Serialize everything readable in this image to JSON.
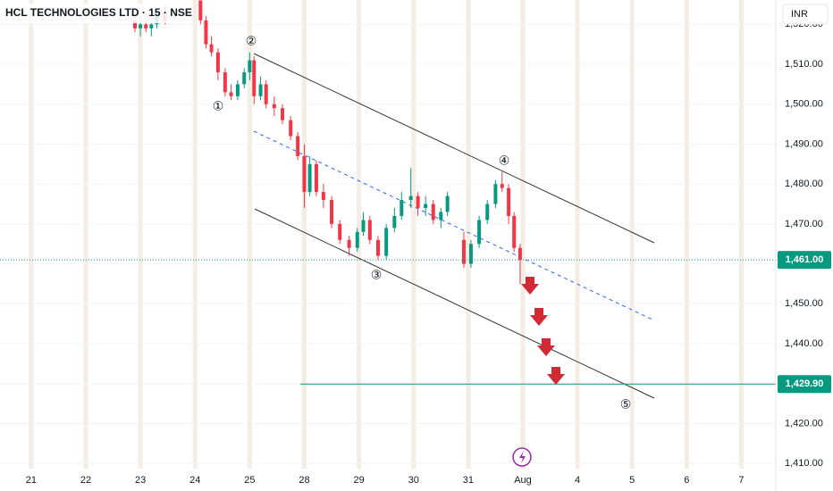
{
  "chart_data": {
    "type": "candlestick",
    "title": "HCL TECHNOLOGIES LTD · 15 · NSE",
    "currency": "INR",
    "up_color": "#089981",
    "down_color": "#f23645",
    "xlim": [
      -0.57,
      13.63
    ],
    "ylim": [
      1408.7,
      1526.1
    ],
    "xticks": [
      {
        "value": 0,
        "label": "21"
      },
      {
        "value": 1,
        "label": "22"
      },
      {
        "value": 2,
        "label": "23"
      },
      {
        "value": 3,
        "label": "24"
      },
      {
        "value": 4,
        "label": "25"
      },
      {
        "value": 5,
        "label": "28"
      },
      {
        "value": 6,
        "label": "29"
      },
      {
        "value": 7,
        "label": "30"
      },
      {
        "value": 8,
        "label": "31"
      },
      {
        "value": 9,
        "label": "Aug"
      },
      {
        "value": 10,
        "label": "4"
      },
      {
        "value": 11,
        "label": "5"
      },
      {
        "value": 12,
        "label": "6"
      },
      {
        "value": 13,
        "label": "7"
      }
    ],
    "yticks": [
      {
        "value": 1410,
        "label": "1,410.00"
      },
      {
        "value": 1420,
        "label": "1,420.00"
      },
      {
        "value": 1430,
        "label": "1,430.00"
      },
      {
        "value": 1440,
        "label": "1,440.00"
      },
      {
        "value": 1450,
        "label": "1,450.00"
      },
      {
        "value": 1460,
        "label": "1,460.00"
      },
      {
        "value": 1470,
        "label": "1,470.00"
      },
      {
        "value": 1480,
        "label": "1,480.00"
      },
      {
        "value": 1490,
        "label": "1,490.00"
      },
      {
        "value": 1500,
        "label": "1,500.00"
      },
      {
        "value": 1510,
        "label": "1,510.00"
      },
      {
        "value": 1520,
        "label": "1,520.00"
      }
    ],
    "x": [
      1.9,
      2.0,
      2.1,
      2.2,
      2.3,
      2.45,
      3.1,
      3.2,
      3.3,
      3.42,
      3.55,
      3.66,
      3.78,
      3.9,
      4.0,
      4.08,
      4.2,
      4.3,
      4.45,
      4.6,
      4.75,
      4.88,
      5.0,
      5.1,
      5.22,
      5.35,
      5.5,
      5.65,
      5.82,
      5.97,
      6.08,
      6.2,
      6.35,
      6.5,
      6.65,
      6.78,
      6.95,
      7.08,
      7.22,
      7.36,
      7.5,
      7.62,
      7.92,
      8.05,
      8.2,
      8.35,
      8.5,
      8.62,
      8.74,
      8.84,
      8.95
    ],
    "open": [
      1521,
      1519,
      1520,
      1519,
      1520,
      1523,
      1526,
      1521,
      1515,
      1513,
      1508,
      1503,
      1502,
      1505,
      1508,
      1511,
      1502,
      1505,
      1500,
      1499,
      1496,
      1492,
      1487,
      1478,
      1485,
      1478,
      1476,
      1470,
      1466,
      1464,
      1468,
      1471,
      1466,
      1462,
      1469,
      1472,
      1476,
      1477,
      1474,
      1475,
      1471,
      1473,
      1466,
      1460,
      1465,
      1471,
      1475,
      1480,
      1479,
      1472,
      1464
    ],
    "high": [
      1523,
      1522,
      1523,
      1521,
      1524,
      1525,
      1526,
      1522,
      1517,
      1514,
      1509,
      1505,
      1506,
      1509,
      1513,
      1512,
      1507,
      1506,
      1502,
      1500,
      1497,
      1493,
      1490,
      1487,
      1486,
      1480,
      1477,
      1471,
      1467,
      1469,
      1473,
      1472,
      1467,
      1470,
      1474,
      1478,
      1484,
      1478,
      1477,
      1476,
      1474,
      1478,
      1468,
      1466,
      1472,
      1476,
      1481,
      1483,
      1480,
      1473,
      1465
    ],
    "low": [
      1518,
      1517,
      1518,
      1517,
      1519,
      1520,
      1520,
      1514,
      1512,
      1506,
      1502,
      1501,
      1501,
      1504,
      1506,
      1500,
      1501,
      1499,
      1497,
      1495,
      1491,
      1486,
      1474,
      1477,
      1477,
      1474,
      1469,
      1465,
      1462,
      1463,
      1467,
      1465,
      1461,
      1461,
      1468,
      1471,
      1474,
      1472,
      1472,
      1470,
      1469,
      1472,
      1459,
      1459,
      1464,
      1470,
      1474,
      1478,
      1470,
      1463,
      1455
    ],
    "close": [
      1519,
      1520,
      1519,
      1520,
      1523,
      1521,
      1521,
      1515,
      1513,
      1508,
      1503,
      1502,
      1505,
      1508,
      1511,
      1502,
      1505,
      1500,
      1499,
      1496,
      1492,
      1487,
      1478,
      1485,
      1478,
      1476,
      1470,
      1466,
      1464,
      1468,
      1471,
      1466,
      1462,
      1469,
      1472,
      1476,
      1477,
      1474,
      1475,
      1471,
      1473,
      1477,
      1460,
      1465,
      1471,
      1475,
      1480,
      1479,
      1472,
      1464,
      1461
    ],
    "levels": [
      {
        "value": 1461,
        "label": "1,461.00",
        "color": "#089981",
        "style": "dotted"
      },
      {
        "value": 1429.9,
        "label": "1,429.90",
        "color": "#089981",
        "style": "solid"
      }
    ],
    "wave_labels": [
      "①",
      "②",
      "③",
      "④",
      "⑤"
    ]
  }
}
